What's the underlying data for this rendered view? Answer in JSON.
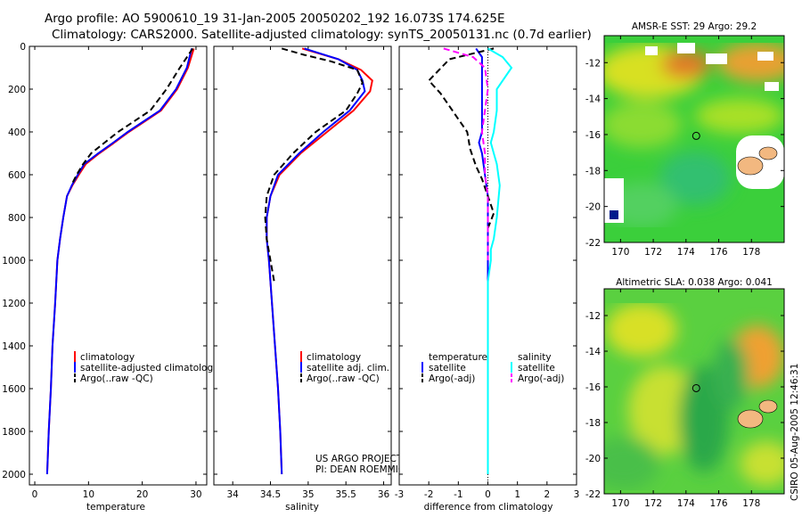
{
  "title": {
    "line1": "Argo profile: AO 5900610_19 31-Jan-2005 20050202_192 16.073S 174.625E",
    "line2": "Climatology: CARS2000. Satellite-adjusted climatology: synTS_20050131.nc (0.7d earlier)"
  },
  "side_label": "CSIRO 05-Aug-2005 12:46:31",
  "project_label": [
    "US ARGO PROJECT",
    "PI: DEAN ROEMMICH"
  ],
  "colors": {
    "climatology": "#ff0000",
    "satellite": "#0000ff",
    "argo": "#000000",
    "salinity_satellite": "#00ffff",
    "salinity_argo": "#ff00ff"
  },
  "chart_data": [
    {
      "type": "line",
      "panel": "temperature",
      "xlabel": "temperature",
      "ylabel": "",
      "xlim": [
        -1,
        32
      ],
      "ylim": [
        2050,
        0
      ],
      "y_reversed": true,
      "xticks": [
        0,
        10,
        20,
        30
      ],
      "yticks": [
        0,
        200,
        400,
        600,
        800,
        1000,
        1200,
        1400,
        1600,
        1800,
        2000
      ],
      "legend": {
        "placement": "lower-right",
        "entries": [
          "climatology",
          "satellite-adjusted climatology",
          "Argo(..raw -QC)"
        ]
      },
      "series": [
        {
          "name": "climatology",
          "color": "#ff0000",
          "style": "solid",
          "x": [
            29.6,
            28.5,
            26.5,
            23.5,
            20.5,
            17.5,
            14.8,
            12.0,
            9.5,
            8.2,
            7.0,
            6.0,
            5.3,
            4.7,
            4.2,
            3.8,
            3.3,
            3.0,
            2.6,
            2.3
          ],
          "y": [
            10,
            100,
            200,
            300,
            350,
            400,
            450,
            500,
            550,
            600,
            650,
            700,
            800,
            900,
            1000,
            1200,
            1400,
            1600,
            1800,
            2000
          ]
        },
        {
          "name": "satellite-adjusted climatology",
          "color": "#0000ff",
          "style": "solid",
          "x": [
            29.2,
            28.3,
            26.3,
            23.3,
            20.3,
            17.3,
            14.6,
            11.8,
            9.2,
            8.0,
            6.9,
            6.0,
            5.3,
            4.7,
            4.2,
            3.8,
            3.3,
            3.0,
            2.6,
            2.3
          ],
          "y": [
            10,
            100,
            200,
            300,
            350,
            400,
            450,
            500,
            550,
            600,
            650,
            700,
            800,
            900,
            1000,
            1200,
            1400,
            1600,
            1800,
            2000
          ]
        },
        {
          "name": "Argo(..raw -QC)",
          "color": "#000000",
          "style": "dashed",
          "x": [
            29.4,
            27.0,
            24.5,
            21.5,
            18.5,
            15.5,
            13.0,
            10.5,
            9.0,
            7.8,
            6.8
          ],
          "y": [
            10,
            100,
            200,
            300,
            350,
            400,
            450,
            500,
            550,
            600,
            650
          ]
        }
      ]
    },
    {
      "type": "line",
      "panel": "salinity",
      "xlabel": "salinity",
      "ylabel": "",
      "xlim": [
        33.75,
        36.1
      ],
      "ylim": [
        2050,
        0
      ],
      "y_reversed": true,
      "xticks": [
        34,
        34.5,
        35,
        35.5,
        36
      ],
      "xticklabels": [
        "34",
        "34.5",
        "35",
        "35.5",
        "36"
      ],
      "legend": {
        "placement": "lower-right",
        "entries": [
          "climatology",
          "satellite adj. clim.",
          "Argo(..raw -QC)"
        ]
      },
      "series": [
        {
          "name": "climatology",
          "color": "#ff0000",
          "style": "solid",
          "x": [
            34.92,
            35.4,
            35.7,
            35.85,
            35.82,
            35.6,
            35.25,
            34.9,
            34.62,
            34.5,
            34.45,
            34.45,
            34.48,
            34.52,
            34.56,
            34.6,
            34.63,
            34.65
          ],
          "y": [
            10,
            60,
            110,
            160,
            210,
            300,
            400,
            500,
            600,
            700,
            800,
            900,
            1000,
            1200,
            1400,
            1600,
            1800,
            2000
          ]
        },
        {
          "name": "satellite adj. clim.",
          "color": "#0000ff",
          "style": "solid",
          "x": [
            34.95,
            35.4,
            35.65,
            35.72,
            35.75,
            35.55,
            35.2,
            34.88,
            34.6,
            34.5,
            34.45,
            34.45,
            34.48,
            34.52,
            34.56,
            34.6,
            34.63,
            34.65
          ],
          "y": [
            10,
            60,
            110,
            160,
            210,
            300,
            400,
            500,
            600,
            700,
            800,
            900,
            1000,
            1200,
            1400,
            1600,
            1800,
            2000
          ]
        },
        {
          "name": "Argo(..raw -QC)",
          "color": "#000000",
          "style": "dashed",
          "x": [
            34.65,
            34.95,
            35.3,
            35.65,
            35.72,
            35.65,
            35.5,
            35.1,
            34.8,
            34.55,
            34.45,
            34.43,
            34.45,
            34.5,
            34.55
          ],
          "y": [
            10,
            40,
            70,
            110,
            170,
            220,
            300,
            400,
            500,
            600,
            700,
            800,
            900,
            1000,
            1100
          ]
        }
      ]
    },
    {
      "type": "line",
      "panel": "difference",
      "xlabel": "difference from climatology",
      "ylabel": "",
      "xlim": [
        -3,
        3
      ],
      "ylim": [
        2050,
        0
      ],
      "y_reversed": true,
      "xticks": [
        -3,
        -2,
        -1,
        0,
        1,
        2,
        3
      ],
      "legend": {
        "placement": "lower-center",
        "entries": [
          "temperature",
          "satellite",
          "Argo(-adj)",
          "salinity",
          "satellite",
          "Argo(-adj)"
        ]
      },
      "series": [
        {
          "name": "satellite",
          "group": "temperature",
          "color": "#0000ff",
          "style": "solid",
          "x": [
            -0.4,
            -0.2,
            -0.2,
            -0.2,
            -0.2,
            -0.2,
            -0.3,
            -0.2,
            -0.1,
            0.0,
            0.0,
            0.0,
            0.0,
            0.0,
            0.0,
            0.0,
            0.0
          ],
          "y": [
            10,
            50,
            100,
            200,
            300,
            400,
            450,
            500,
            600,
            700,
            800,
            900,
            1000,
            1200,
            1400,
            1600,
            2000
          ]
        },
        {
          "name": "Argo(-adj)",
          "group": "temperature",
          "color": "#000000",
          "style": "dashed",
          "x": [
            0.2,
            -1.3,
            -2.0,
            -1.6,
            -1.3,
            -1.0,
            -0.7,
            -0.6,
            -0.4,
            -0.2,
            0.0,
            0.2,
            0.0
          ],
          "y": [
            10,
            60,
            160,
            220,
            280,
            340,
            400,
            480,
            560,
            620,
            700,
            780,
            850
          ]
        },
        {
          "name": "satellite",
          "group": "salinity",
          "color": "#00ffff",
          "style": "solid",
          "x": [
            0.0,
            0.5,
            0.8,
            0.3,
            0.3,
            0.2,
            0.1,
            0.2,
            0.3,
            0.4,
            0.3,
            0.2,
            0.1,
            0.1,
            0.0,
            0.0,
            0.0,
            0.0,
            0.0
          ],
          "y": [
            10,
            50,
            100,
            200,
            300,
            400,
            450,
            500,
            550,
            650,
            800,
            900,
            950,
            1000,
            1100,
            1200,
            1400,
            1600,
            2000
          ]
        },
        {
          "name": "Argo(-adj)",
          "group": "salinity",
          "color": "#ff00ff",
          "style": "dashed",
          "x": [
            -1.5,
            -0.5,
            -0.1,
            0.0,
            -0.1,
            -0.2,
            -0.1,
            -0.1,
            0.0,
            0.0,
            0.0,
            0.0
          ],
          "y": [
            10,
            50,
            100,
            200,
            300,
            400,
            500,
            600,
            700,
            800,
            900,
            1000
          ]
        }
      ]
    },
    {
      "type": "heatmap",
      "panel": "map-sst",
      "title": "AMSR-E SST: 29 Argo: 29.2",
      "xlim": [
        169,
        180
      ],
      "ylim": [
        -22,
        -10.5
      ],
      "xticks": [
        170,
        172,
        174,
        176,
        178
      ],
      "yticks": [
        -12,
        -14,
        -16,
        -18,
        -20,
        -22
      ],
      "marker": {
        "lon": 174.625,
        "lat": -16.073
      }
    },
    {
      "type": "heatmap",
      "panel": "map-sla",
      "title": "Altimetric SLA: 0.038 Argo: 0.041",
      "xlim": [
        169,
        180
      ],
      "ylim": [
        -22,
        -10.5
      ],
      "xticks": [
        170,
        172,
        174,
        176,
        178
      ],
      "yticks": [
        -12,
        -14,
        -16,
        -18,
        -20,
        -22
      ],
      "marker": {
        "lon": 174.625,
        "lat": -16.073
      }
    }
  ]
}
